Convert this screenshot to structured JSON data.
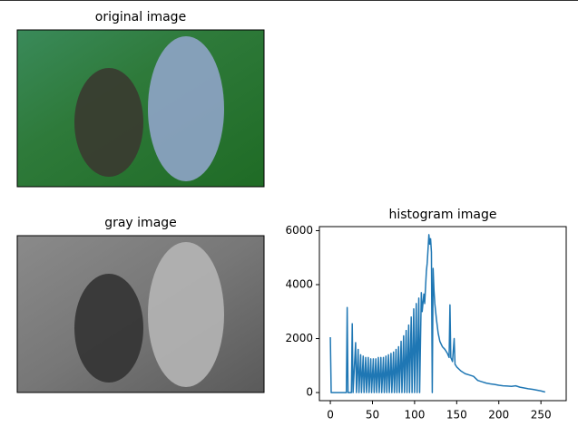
{
  "chart_data": [
    {
      "type": "image",
      "title": "original image"
    },
    {
      "type": "image",
      "title": "gray image"
    },
    {
      "type": "line",
      "title": "histogram image",
      "color": "#1f77b4",
      "x": [
        0,
        1,
        19,
        20,
        21,
        25,
        26,
        27,
        30,
        31,
        33,
        34,
        36,
        37,
        39,
        40,
        42,
        43,
        45,
        46,
        48,
        49,
        51,
        52,
        54,
        55,
        57,
        58,
        60,
        61,
        63,
        64,
        66,
        67,
        69,
        70,
        72,
        73,
        75,
        76,
        78,
        79,
        81,
        82,
        84,
        85,
        87,
        88,
        90,
        91,
        93,
        94,
        96,
        97,
        99,
        100,
        102,
        103,
        105,
        106,
        108,
        109,
        111,
        112,
        114,
        115,
        117,
        118,
        119,
        120,
        121,
        122,
        123,
        124,
        126,
        128,
        130,
        133,
        136,
        139,
        141,
        142,
        143,
        145,
        147,
        148,
        150,
        155,
        160,
        165,
        170,
        175,
        180,
        185,
        190,
        195,
        200,
        205,
        210,
        215,
        220,
        225,
        230,
        235,
        240,
        245,
        250,
        255
      ],
      "values": [
        2050,
        0,
        0,
        3150,
        0,
        0,
        2550,
        0,
        1850,
        0,
        1600,
        0,
        1400,
        0,
        1350,
        0,
        1300,
        0,
        1300,
        0,
        1250,
        0,
        1250,
        0,
        1250,
        0,
        1300,
        0,
        1300,
        0,
        1300,
        0,
        1350,
        0,
        1400,
        0,
        1450,
        0,
        1500,
        0,
        1600,
        0,
        1700,
        0,
        1900,
        0,
        2100,
        0,
        2300,
        0,
        2500,
        0,
        2800,
        0,
        3100,
        0,
        3300,
        0,
        3500,
        0,
        3700,
        3000,
        3650,
        3300,
        4500,
        4800,
        5850,
        5500,
        5700,
        5200,
        0,
        4600,
        3800,
        3300,
        2700,
        2200,
        1900,
        1700,
        1600,
        1450,
        1300,
        3250,
        1300,
        1150,
        2000,
        1050,
        950,
        800,
        700,
        650,
        600,
        450,
        400,
        350,
        320,
        300,
        270,
        250,
        240,
        230,
        250,
        200,
        170,
        140,
        120,
        90,
        60,
        20
      ],
      "xlim": [
        -13,
        280
      ],
      "ylim": [
        -300,
        6150
      ],
      "xticks": [
        0,
        50,
        100,
        150,
        200,
        250
      ],
      "yticks": [
        0,
        2000,
        4000,
        6000
      ]
    }
  ]
}
